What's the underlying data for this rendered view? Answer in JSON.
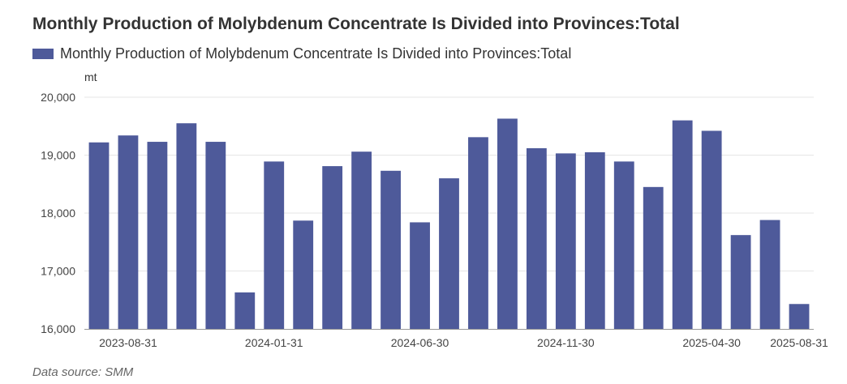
{
  "header": {
    "title": "Monthly Production of Molybdenum Concentrate Is Divided into Provinces:Total"
  },
  "footer": {
    "source": "Data source:  SMM"
  },
  "colors": {
    "bar": "#4e5a9a",
    "grid": "#e6e6e6",
    "axis": "#999999"
  },
  "chart_data": {
    "type": "bar",
    "title": "Monthly Production of Molybdenum Concentrate Is Divided into Provinces:Total",
    "unit": "mt",
    "legend": {
      "position": "top-left",
      "entries": [
        "Monthly Production of Molybdenum Concentrate Is Divided into Provinces:Total"
      ]
    },
    "grid": true,
    "ylim": [
      16000,
      20000
    ],
    "yticks": [
      16000,
      17000,
      18000,
      19000,
      20000
    ],
    "ytick_labels": [
      "16,000",
      "17,000",
      "18,000",
      "19,000",
      "20,000"
    ],
    "xtick_labels": [
      {
        "index": 1,
        "label": "2023-08-31"
      },
      {
        "index": 6,
        "label": "2024-01-31"
      },
      {
        "index": 11,
        "label": "2024-06-30"
      },
      {
        "index": 16,
        "label": "2024-11-30"
      },
      {
        "index": 21,
        "label": "2025-04-30"
      },
      {
        "index": 24,
        "label": "2025-08-31"
      }
    ],
    "series": [
      {
        "name": "Monthly Production of Molybdenum Concentrate Is Divided into Provinces:Total",
        "values": [
          19220,
          19340,
          19230,
          19550,
          19230,
          16630,
          18890,
          17870,
          18810,
          19060,
          18730,
          17840,
          18600,
          19310,
          19630,
          19120,
          19030,
          19050,
          18890,
          18450,
          19600,
          19420,
          17620,
          17880,
          16430
        ]
      }
    ]
  }
}
